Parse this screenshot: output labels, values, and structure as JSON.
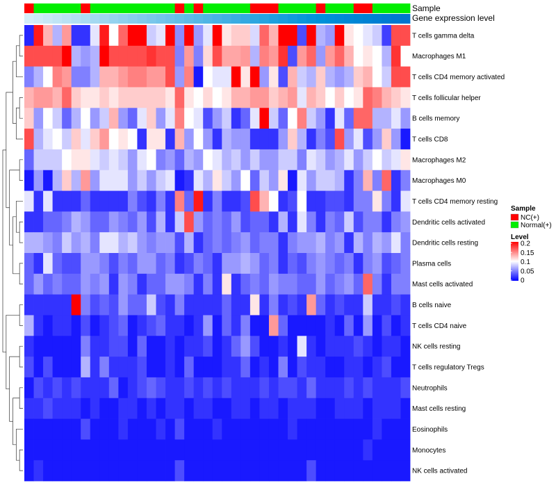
{
  "chart_data": {
    "type": "heatmap",
    "annotation_tracks": [
      "Sample",
      "Gene expression level"
    ],
    "sample_groups": [
      0,
      1,
      1,
      1,
      1,
      1,
      0,
      1,
      1,
      1,
      1,
      1,
      1,
      1,
      1,
      1,
      0,
      1,
      0,
      1,
      1,
      1,
      1,
      1,
      0,
      0,
      0,
      1,
      1,
      1,
      1,
      0,
      1,
      1,
      1,
      0,
      0,
      1,
      1,
      1,
      1
    ],
    "expression_level_colors": [
      "#d5eef8",
      "#ceebf7",
      "#c7e8f6",
      "#c0e5f5",
      "#b9e2f4",
      "#b2dff3",
      "#abdcf2",
      "#a4d9f1",
      "#9dd6f0",
      "#96d3ef",
      "#8fd0ee",
      "#88cded",
      "#81caec",
      "#7ac7eb",
      "#73c4ea",
      "#6cc1e9",
      "#65bee8",
      "#5ebbe7",
      "#57b8e6",
      "#50b5e5",
      "#49b2e4",
      "#42afe3",
      "#3bace2",
      "#34a9e1",
      "#2da6e0",
      "#26a3df",
      "#1fa0de",
      "#189ddd",
      "#119adc",
      "#0a97db",
      "#0394da",
      "#0091d9",
      "#008ed8",
      "#008bd7",
      "#0088d6",
      "#0085d5",
      "#0082d4",
      "#007fd3",
      "#007cd2",
      "#0079d1",
      "#0076d0"
    ],
    "rows": [
      "T cells gamma delta",
      "Macrophages M1",
      "T cells CD4 memory activated",
      "T cells follicular helper",
      "B cells memory",
      "T cells CD8",
      "Macrophages M2",
      "Macrophages M0",
      "T cells CD4 memory resting",
      "Dendritic cells activated",
      "Dendritic cells resting",
      "Plasma cells",
      "Mast cells activated",
      "B cells naive",
      "T cells CD4 naive",
      "NK cells resting",
      "T cells regulatory  Tregs",
      "Neutrophils",
      "Mast cells resting",
      "Eosinophils",
      "Monocytes",
      "NK cells activated"
    ],
    "legend": {
      "sample": {
        "title": "Sample",
        "items": [
          {
            "label": "NC(+)",
            "color": "#ff0000"
          },
          {
            "label": "Normal(+)",
            "color": "#00ee00"
          }
        ]
      },
      "level": {
        "title": "Level",
        "ticks": [
          "0.2",
          "0.15",
          "0.1",
          "0.05",
          "0"
        ],
        "range": [
          0,
          0.2
        ],
        "colors": {
          "low": "#0000ff",
          "mid": "#ffffff",
          "high": "#ff0000"
        }
      }
    },
    "values": [
      [
        0.015,
        0.19,
        0.13,
        0.07,
        0.14,
        0.02,
        0.02,
        0.09,
        0.19,
        0.1,
        0.16,
        0.2,
        0.2,
        0.08,
        0.09,
        0.2,
        0.055,
        0.2,
        0.06,
        0.09,
        0.2,
        0.11,
        0.12,
        0.12,
        0.085,
        0.16,
        0.13,
        0.2,
        0.2,
        0.03,
        0.2,
        0.07,
        0.06,
        0.2,
        0.11,
        0.1,
        0.09,
        0.08,
        0.025,
        0.17,
        0.17
      ],
      [
        0.17,
        0.17,
        0.17,
        0.17,
        0.2,
        0.07,
        0.06,
        0.07,
        0.2,
        0.17,
        0.17,
        0.17,
        0.17,
        0.18,
        0.17,
        0.17,
        0.05,
        0.14,
        0.05,
        0.115,
        0.17,
        0.135,
        0.135,
        0.14,
        0.07,
        0.15,
        0.14,
        0.18,
        0.03,
        0.14,
        0.16,
        0.06,
        0.14,
        0.16,
        0.13,
        0.1,
        0.11,
        0.1,
        0.07,
        0.18,
        0.1
      ],
      [
        0.05,
        0.07,
        0.1,
        0.15,
        0.14,
        0.05,
        0.05,
        0.07,
        0.13,
        0.13,
        0.14,
        0.15,
        0.15,
        0.14,
        0.14,
        0.17,
        0.06,
        0.15,
        0.01,
        0.1,
        0.09,
        0.09,
        0.2,
        0.11,
        0.2,
        0.06,
        0.11,
        0.03,
        0.13,
        0.08,
        0.07,
        0.12,
        0.07,
        0.06,
        0.07,
        0.12,
        0.13,
        0.1,
        0.08,
        0.17,
        0.17
      ],
      [
        0.13,
        0.14,
        0.14,
        0.13,
        0.16,
        0.12,
        0.11,
        0.11,
        0.12,
        0.11,
        0.12,
        0.12,
        0.12,
        0.12,
        0.12,
        0.11,
        0.16,
        0.11,
        0.1,
        0.115,
        0.1,
        0.11,
        0.13,
        0.13,
        0.14,
        0.14,
        0.12,
        0.13,
        0.14,
        0.09,
        0.13,
        0.12,
        0.1,
        0.12,
        0.1,
        0.11,
        0.16,
        0.15,
        0.13,
        0.12,
        0.11
      ],
      [
        0.12,
        0.06,
        0.1,
        0.08,
        0.04,
        0.07,
        0.1,
        0.06,
        0.08,
        0.13,
        0.06,
        0.04,
        0.09,
        0.12,
        0.06,
        0.09,
        0.15,
        0.1,
        0.09,
        0.03,
        0.06,
        0.08,
        0.02,
        0.04,
        0.09,
        0.2,
        0.08,
        0.04,
        0.1,
        0.15,
        0.08,
        0.06,
        0.02,
        0.09,
        0.04,
        0.16,
        0.16,
        0.07,
        0.07,
        0.09,
        0.06
      ],
      [
        0.17,
        0.07,
        0.09,
        0.1,
        0.08,
        0.12,
        0.09,
        0.12,
        0.14,
        0.1,
        0.11,
        0.1,
        0.02,
        0.11,
        0.11,
        0.02,
        0.13,
        0.06,
        0.1,
        0.06,
        0.02,
        0.07,
        0.06,
        0.06,
        0.02,
        0.02,
        0.02,
        0.06,
        0.12,
        0.07,
        0.02,
        0.05,
        0.03,
        0.17,
        0.06,
        0.09,
        0.03,
        0.06,
        0.12,
        0.06,
        0.01
      ],
      [
        0.04,
        0.08,
        0.08,
        0.08,
        0.1,
        0.11,
        0.11,
        0.09,
        0.08,
        0.09,
        0.08,
        0.06,
        0.09,
        0.1,
        0.05,
        0.06,
        0.04,
        0.07,
        0.06,
        0.1,
        0.09,
        0.07,
        0.08,
        0.06,
        0.08,
        0.06,
        0.06,
        0.08,
        0.08,
        0.05,
        0.09,
        0.08,
        0.06,
        0.07,
        0.09,
        0.06,
        0.08,
        0.1,
        0.08,
        0.09,
        0.11
      ],
      [
        0.01,
        0.06,
        0.01,
        0.07,
        0.12,
        0.07,
        0.14,
        0.06,
        0.09,
        0.09,
        0.09,
        0.06,
        0.08,
        0.06,
        0.08,
        0.09,
        0.01,
        0.02,
        0.09,
        0.07,
        0.11,
        0.08,
        0.06,
        0.1,
        0.04,
        0.08,
        0.06,
        0.11,
        0.01,
        0.09,
        0.06,
        0.08,
        0.08,
        0.07,
        0.02,
        0.05,
        0.13,
        0.05,
        0.16,
        0.02,
        0.05
      ],
      [
        0.09,
        0.02,
        0.09,
        0.02,
        0.02,
        0.02,
        0.04,
        0.02,
        0.02,
        0.02,
        0.02,
        0.05,
        0.03,
        0.02,
        0.05,
        0.02,
        0.15,
        0.04,
        0.19,
        0.02,
        0.05,
        0.02,
        0.02,
        0.03,
        0.17,
        0.13,
        0.1,
        0.02,
        0.03,
        0.1,
        0.02,
        0.02,
        0.03,
        0.03,
        0.02,
        0.05,
        0.05,
        0.11,
        0.05,
        0.02,
        0.09
      ],
      [
        0.02,
        0.02,
        0.04,
        0.04,
        0.05,
        0.07,
        0.06,
        0.04,
        0.04,
        0.06,
        0.05,
        0.04,
        0.06,
        0.03,
        0.07,
        0.02,
        0.08,
        0.17,
        0.06,
        0.04,
        0.05,
        0.04,
        0.06,
        0.03,
        0.04,
        0.04,
        0.02,
        0.07,
        0.02,
        0.09,
        0.05,
        0.02,
        0.05,
        0.04,
        0.08,
        0.03,
        0.05,
        0.05,
        0.02,
        0.05,
        0.06
      ],
      [
        0.07,
        0.07,
        0.06,
        0.05,
        0.08,
        0.06,
        0.07,
        0.05,
        0.09,
        0.09,
        0.07,
        0.08,
        0.06,
        0.05,
        0.06,
        0.06,
        0.03,
        0.07,
        0.02,
        0.04,
        0.05,
        0.04,
        0.05,
        0.06,
        0.04,
        0.05,
        0.05,
        0.02,
        0.05,
        0.06,
        0.06,
        0.07,
        0.05,
        0.06,
        0.02,
        0.07,
        0.05,
        0.07,
        0.06,
        0.09,
        0.05
      ],
      [
        0.04,
        0.02,
        0.09,
        0.04,
        0.03,
        0.03,
        0.06,
        0.06,
        0.05,
        0.03,
        0.05,
        0.04,
        0.06,
        0.06,
        0.04,
        0.05,
        0.02,
        0.03,
        0.05,
        0.04,
        0.02,
        0.06,
        0.06,
        0.07,
        0.06,
        0.04,
        0.05,
        0.02,
        0.04,
        0.03,
        0.05,
        0.06,
        0.05,
        0.04,
        0.05,
        0.02,
        0.05,
        0.06,
        0.03,
        0.04,
        0.05
      ],
      [
        0.04,
        0.06,
        0.04,
        0.05,
        0.04,
        0.04,
        0.06,
        0.05,
        0.06,
        0.02,
        0.06,
        0.05,
        0.02,
        0.04,
        0.04,
        0.06,
        0.06,
        0.05,
        0.02,
        0.05,
        0.02,
        0.11,
        0.02,
        0.04,
        0.05,
        0.04,
        0.06,
        0.05,
        0.05,
        0.04,
        0.04,
        0.06,
        0.04,
        0.05,
        0.06,
        0.04,
        0.16,
        0.05,
        0.02,
        0.05,
        0.05
      ],
      [
        0.02,
        0.02,
        0.02,
        0.02,
        0.02,
        0.2,
        0.05,
        0.03,
        0.04,
        0.03,
        0.06,
        0.04,
        0.04,
        0.08,
        0.03,
        0.02,
        0.05,
        0.02,
        0.02,
        0.02,
        0.02,
        0.04,
        0.02,
        0.02,
        0.11,
        0.02,
        0.05,
        0.02,
        0.03,
        0.02,
        0.14,
        0.04,
        0.02,
        0.03,
        0.02,
        0.02,
        0.08,
        0.02,
        0.02,
        0.03,
        0.02
      ],
      [
        0.07,
        0.02,
        0.01,
        0.02,
        0.02,
        0.01,
        0.03,
        0.01,
        0.02,
        0.03,
        0.04,
        0.01,
        0.02,
        0.03,
        0.04,
        0.02,
        0.02,
        0.01,
        0.02,
        0.06,
        0.01,
        0.04,
        0.02,
        0.05,
        0.01,
        0.01,
        0.14,
        0.04,
        0.01,
        0.01,
        0.01,
        0.01,
        0.02,
        0.01,
        0.04,
        0.01,
        0.06,
        0.01,
        0.03,
        0.01,
        0.02
      ],
      [
        0.02,
        0.01,
        0.01,
        0.01,
        0.01,
        0.01,
        0.05,
        0.02,
        0.02,
        0.03,
        0.03,
        0.01,
        0.04,
        0.01,
        0.01,
        0.02,
        0.01,
        0.02,
        0.02,
        0.03,
        0.01,
        0.02,
        0.04,
        0.06,
        0.03,
        0.01,
        0.01,
        0.02,
        0.01,
        0.09,
        0.02,
        0.01,
        0.02,
        0.02,
        0.02,
        0.03,
        0.02,
        0.01,
        0.02,
        0.02,
        0.01
      ],
      [
        0.03,
        0.01,
        0.03,
        0.01,
        0.01,
        0.01,
        0.07,
        0.02,
        0.05,
        0.02,
        0.02,
        0.02,
        0.03,
        0.01,
        0.01,
        0.02,
        0.01,
        0.04,
        0.01,
        0.01,
        0.01,
        0.02,
        0.02,
        0.04,
        0.01,
        0.02,
        0.01,
        0.05,
        0.01,
        0.03,
        0.02,
        0.02,
        0.01,
        0.01,
        0.02,
        0.02,
        0.01,
        0.02,
        0.03,
        0.01,
        0.01
      ],
      [
        0.01,
        0.03,
        0.02,
        0.03,
        0.02,
        0.03,
        0.02,
        0.02,
        0.02,
        0.04,
        0.01,
        0.02,
        0.03,
        0.04,
        0.03,
        0.02,
        0.02,
        0.03,
        0.02,
        0.03,
        0.02,
        0.03,
        0.02,
        0.02,
        0.02,
        0.03,
        0.02,
        0.03,
        0.03,
        0.02,
        0.04,
        0.02,
        0.02,
        0.02,
        0.03,
        0.02,
        0.03,
        0.02,
        0.02,
        0.02,
        0.03
      ],
      [
        0.02,
        0.02,
        0.03,
        0.02,
        0.02,
        0.02,
        0.01,
        0.02,
        0.01,
        0.01,
        0.02,
        0.02,
        0.01,
        0.02,
        0.01,
        0.02,
        0.02,
        0.01,
        0.02,
        0.02,
        0.01,
        0.01,
        0.02,
        0.02,
        0.01,
        0.02,
        0.02,
        0.01,
        0.02,
        0.02,
        0.02,
        0.01,
        0.01,
        0.02,
        0.02,
        0.02,
        0.01,
        0.02,
        0.02,
        0.02,
        0.01
      ],
      [
        0.01,
        0.01,
        0.01,
        0.01,
        0.01,
        0.01,
        0.03,
        0.01,
        0.01,
        0.01,
        0.02,
        0.01,
        0.01,
        0.01,
        0.02,
        0.01,
        0.03,
        0.01,
        0.01,
        0.01,
        0.02,
        0.01,
        0.01,
        0.01,
        0.01,
        0.01,
        0.01,
        0.01,
        0.02,
        0.01,
        0.01,
        0.01,
        0.01,
        0.01,
        0.01,
        0.01,
        0.01,
        0.02,
        0.01,
        0.01,
        0.01
      ],
      [
        0.01,
        0.01,
        0.01,
        0.01,
        0.01,
        0.01,
        0.01,
        0.01,
        0.01,
        0.01,
        0.01,
        0.01,
        0.01,
        0.01,
        0.01,
        0.01,
        0.01,
        0.01,
        0.01,
        0.01,
        0.01,
        0.01,
        0.01,
        0.01,
        0.01,
        0.01,
        0.01,
        0.01,
        0.01,
        0.01,
        0.01,
        0.01,
        0.01,
        0.01,
        0.01,
        0.01,
        0.02,
        0.01,
        0.01,
        0.01,
        0.01
      ],
      [
        0.01,
        0.02,
        0.01,
        0.01,
        0.01,
        0.01,
        0.01,
        0.01,
        0.01,
        0.01,
        0.01,
        0.01,
        0.01,
        0.01,
        0.01,
        0.01,
        0.03,
        0.01,
        0.01,
        0.01,
        0.01,
        0.01,
        0.01,
        0.01,
        0.01,
        0.01,
        0.01,
        0.01,
        0.01,
        0.01,
        0.03,
        0.01,
        0.01,
        0.01,
        0.01,
        0.01,
        0.01,
        0.01,
        0.01,
        0.01,
        0.01
      ]
    ]
  }
}
